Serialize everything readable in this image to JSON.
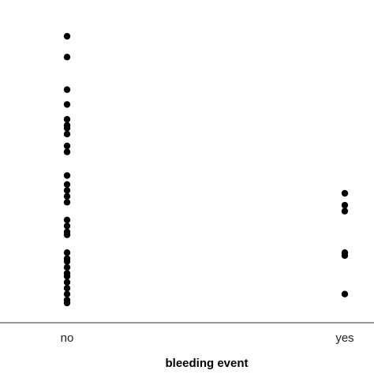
{
  "chart_data": {
    "type": "scatter",
    "title": "",
    "xlabel": "bleeding event",
    "ylabel": "",
    "categories": [
      "no",
      "yes"
    ],
    "series": [
      {
        "category": "no",
        "values": [
          1.0,
          0.93,
          0.82,
          0.77,
          0.72,
          0.7,
          0.69,
          0.67,
          0.63,
          0.61,
          0.53,
          0.5,
          0.48,
          0.46,
          0.44,
          0.38,
          0.36,
          0.34,
          0.33,
          0.27,
          0.25,
          0.24,
          0.22,
          0.2,
          0.19,
          0.17,
          0.15,
          0.13,
          0.11,
          0.1
        ]
      },
      {
        "category": "yes",
        "values": [
          0.47,
          0.43,
          0.41,
          0.27,
          0.26,
          0.13
        ]
      }
    ],
    "y_axis_visible": false,
    "grid": false,
    "legend": "none",
    "point_color": "#000000",
    "axis_color": "#333333"
  }
}
